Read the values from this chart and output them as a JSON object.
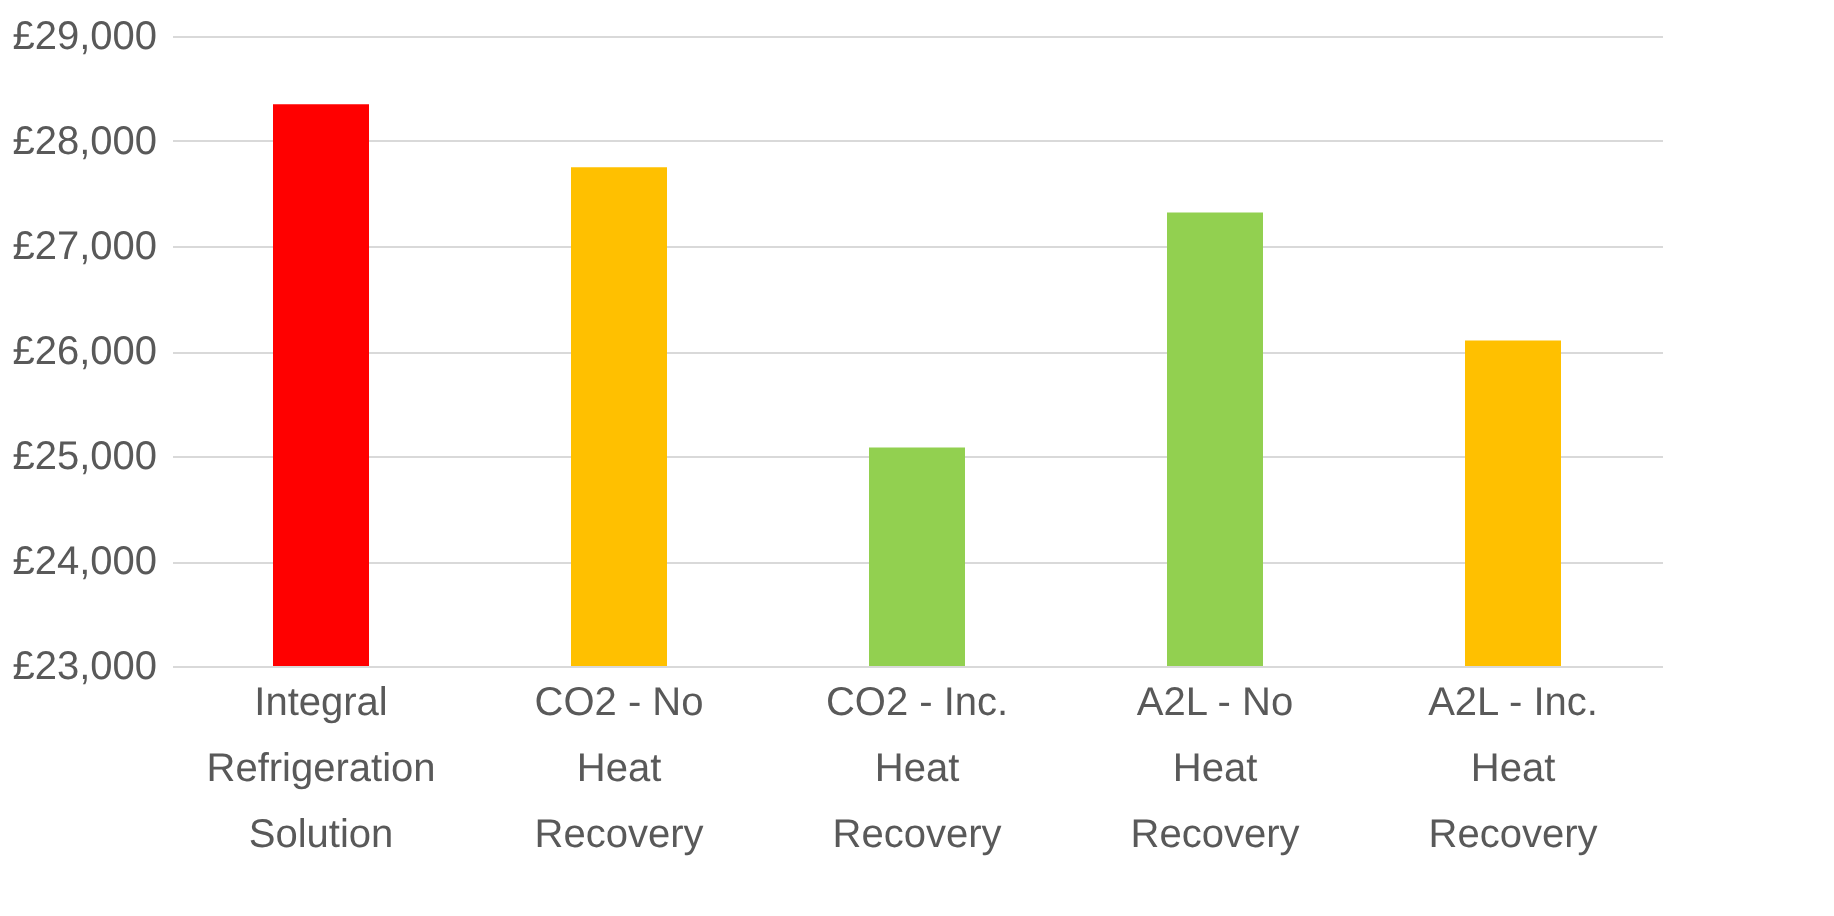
{
  "chart_data": {
    "type": "bar",
    "categories": [
      "Integral\nRefrigeration\nSolution",
      "CO2 - No\nHeat\nRecovery",
      "CO2 - Inc.\nHeat\nRecovery",
      "A2L - No\nHeat\nRecovery",
      "A2L - Inc.\nHeat\nRecovery"
    ],
    "values": [
      28350,
      27750,
      25080,
      27320,
      26100
    ],
    "colors": [
      "#ff0000",
      "#ffc000",
      "#92d050",
      "#92d050",
      "#ffc000"
    ],
    "ylim": [
      23000,
      29000
    ],
    "yticks": [
      {
        "value": 23000,
        "label": "£23,000"
      },
      {
        "value": 24000,
        "label": "£24,000"
      },
      {
        "value": 25000,
        "label": "£25,000"
      },
      {
        "value": 26000,
        "label": "£26,000"
      },
      {
        "value": 27000,
        "label": "£27,000"
      },
      {
        "value": 28000,
        "label": "£28,000"
      },
      {
        "value": 29000,
        "label": "£29,000"
      }
    ],
    "grid": "y"
  }
}
